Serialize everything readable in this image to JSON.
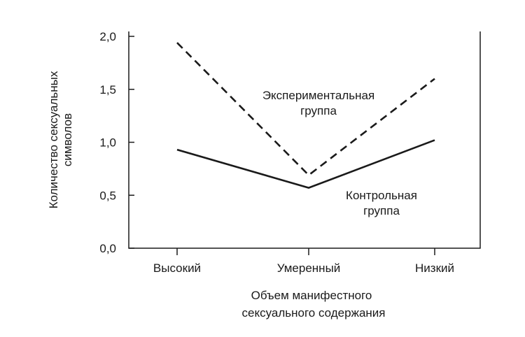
{
  "chart_data": {
    "type": "line",
    "categories": [
      "Высокий",
      "Умеренный",
      "Низкий"
    ],
    "series": [
      {
        "name_lines": [
          "Экспериментальная",
          "группа"
        ],
        "values": [
          1.94,
          0.69,
          1.6
        ],
        "style": "dashed"
      },
      {
        "name_lines": [
          "Контрольная",
          "группа"
        ],
        "values": [
          0.93,
          0.57,
          1.02
        ],
        "style": "solid"
      }
    ],
    "yticks": [
      "0,0",
      "0,5",
      "1,0",
      "1,5",
      "2,0"
    ],
    "ytick_values": [
      0,
      0.5,
      1.0,
      1.5,
      2.0
    ],
    "ylim": [
      0,
      2.0
    ],
    "ylabel_lines": [
      "Количество сексуальных",
      "символов"
    ],
    "xlabel_lines": [
      "Объем манифестного",
      "сексуального содержания"
    ],
    "grid": false,
    "colors": {
      "line": "#1a1a1a",
      "text": "#1a1a1a"
    }
  }
}
